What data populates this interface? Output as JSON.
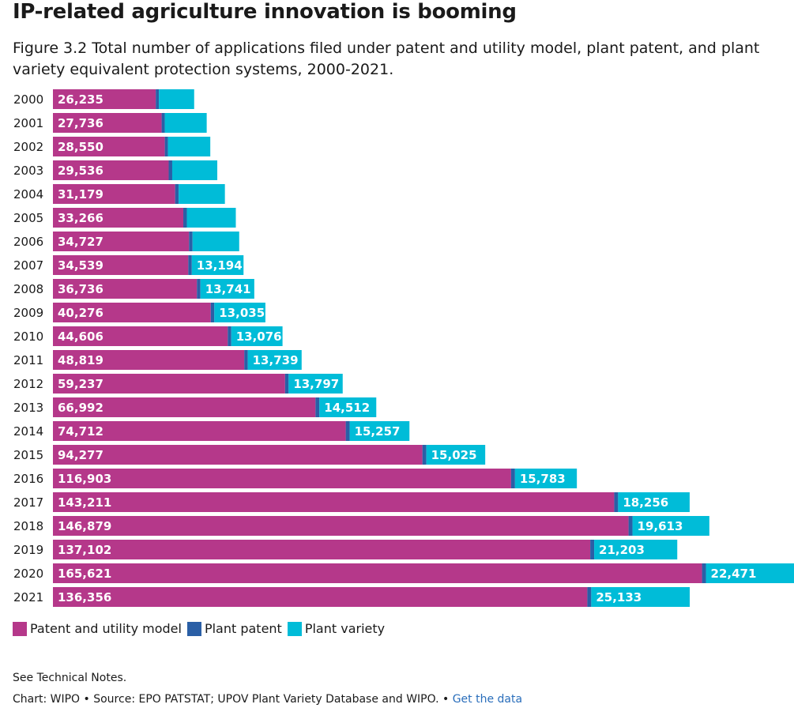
{
  "title": "IP-related agriculture innovation is booming",
  "subtitle": "Figure 3.2 Total number of applications filed under patent and utility model, plant patent, and plant variety equivalent protection systems, 2000-2021.",
  "notes": "See Technical Notes.",
  "source": {
    "text": "Chart: WIPO • Source: EPO PATSTAT; UPOV Plant Variety Database and WIPO. •",
    "link_label": "Get the data"
  },
  "colors": {
    "patent": "#b5388a",
    "plant_patent": "#2a5fa6",
    "plant_variety": "#00bcd8"
  },
  "chart_data": {
    "type": "bar",
    "orientation": "horizontal",
    "stacked": true,
    "categories": [
      "2000",
      "2001",
      "2002",
      "2003",
      "2004",
      "2005",
      "2006",
      "2007",
      "2008",
      "2009",
      "2010",
      "2011",
      "2012",
      "2013",
      "2014",
      "2015",
      "2016",
      "2017",
      "2018",
      "2019",
      "2020",
      "2021"
    ],
    "series": [
      {
        "name": "Patent and utility model",
        "values": [
          26235,
          27736,
          28550,
          29536,
          31179,
          33266,
          34727,
          34539,
          36736,
          40276,
          44606,
          48819,
          59237,
          66992,
          74712,
          94277,
          116903,
          143211,
          146879,
          137102,
          165621,
          136356
        ],
        "labels": [
          "26,235",
          "27,736",
          "28,550",
          "29,536",
          "31,179",
          "33,266",
          "34,727",
          "34,539",
          "36,736",
          "40,276",
          "44,606",
          "48,819",
          "59,237",
          "66,992",
          "74,712",
          "94,277",
          "116,903",
          "143,211",
          "146,879",
          "137,102",
          "165,621",
          "136,356"
        ]
      },
      {
        "name": "Plant patent",
        "values": [
          800,
          800,
          800,
          900,
          900,
          900,
          900,
          900,
          900,
          900,
          900,
          900,
          900,
          1000,
          1000,
          1000,
          1000,
          1000,
          1000,
          1000,
          1000,
          1000
        ],
        "labels": []
      },
      {
        "name": "Plant variety",
        "values": [
          9000,
          10700,
          10800,
          11500,
          11800,
          12500,
          11900,
          13194,
          13741,
          13035,
          13076,
          13739,
          13797,
          14512,
          15257,
          15025,
          15783,
          18256,
          19613,
          21203,
          22471,
          25133
        ],
        "labels": [
          "",
          "",
          "",
          "",
          "",
          "",
          "",
          "13,194",
          "13,741",
          "13,035",
          "13,076",
          "13,739",
          "13,797",
          "14,512",
          "15,257",
          "15,025",
          "15,783",
          "18,256",
          "19,613",
          "21,203",
          "22,471",
          "25,133"
        ]
      }
    ],
    "xlim": [
      0,
      189092
    ],
    "grid": false,
    "legend_position": "bottom-left"
  }
}
